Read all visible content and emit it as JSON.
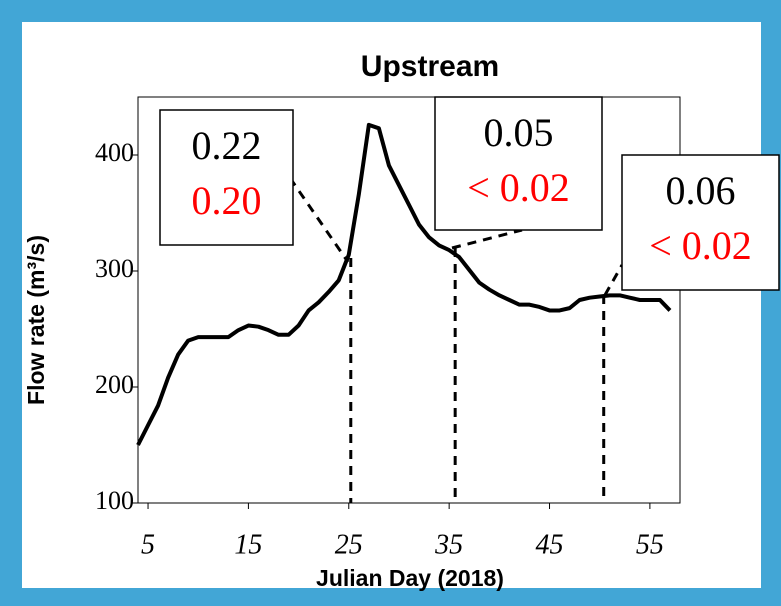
{
  "chart_data": {
    "type": "line",
    "title": "Upstream",
    "x_label": "Julian Day (2018)",
    "y_label": "Flow rate (m³/s)",
    "x": [
      4,
      5,
      6,
      7,
      8,
      9,
      10,
      11,
      12,
      13,
      14,
      15,
      16,
      17,
      18,
      19,
      20,
      21,
      22,
      23,
      24,
      25,
      26,
      27,
      28,
      29,
      30,
      31,
      32,
      33,
      34,
      35,
      36,
      37,
      38,
      39,
      40,
      41,
      42,
      43,
      44,
      45,
      46,
      47,
      48,
      49,
      50,
      51,
      52,
      53,
      54,
      55,
      56,
      57
    ],
    "series": [
      {
        "name": "Upstream",
        "color": "#000000",
        "values": [
          150,
          167,
          184,
          208,
          228,
          240,
          243,
          243,
          243,
          243,
          249,
          253,
          252,
          249,
          245,
          245,
          253,
          266,
          273,
          282,
          292,
          314,
          366,
          426,
          423,
          391,
          374,
          357,
          340,
          329,
          322,
          318,
          312,
          301,
          290,
          284,
          279,
          275,
          271,
          271,
          269,
          266,
          266,
          268,
          275,
          277,
          278,
          279,
          279,
          277,
          275,
          275,
          275,
          266
        ]
      }
    ],
    "xlim": [
      4,
      58
    ],
    "ylim": [
      100,
      450
    ],
    "xticks": [
      5,
      15,
      25,
      35,
      45,
      55
    ],
    "yticks": [
      100,
      200,
      300,
      400
    ],
    "annotation_colors": [
      "#000000",
      "#ff0000"
    ],
    "annotations": [
      {
        "x": 25.2,
        "labels": [
          "0.22",
          "0.20"
        ]
      },
      {
        "x": 35.6,
        "labels": [
          "0.05",
          "< 0.02"
        ]
      },
      {
        "x": 50.4,
        "labels": [
          "0.06",
          "< 0.02"
        ]
      }
    ]
  }
}
